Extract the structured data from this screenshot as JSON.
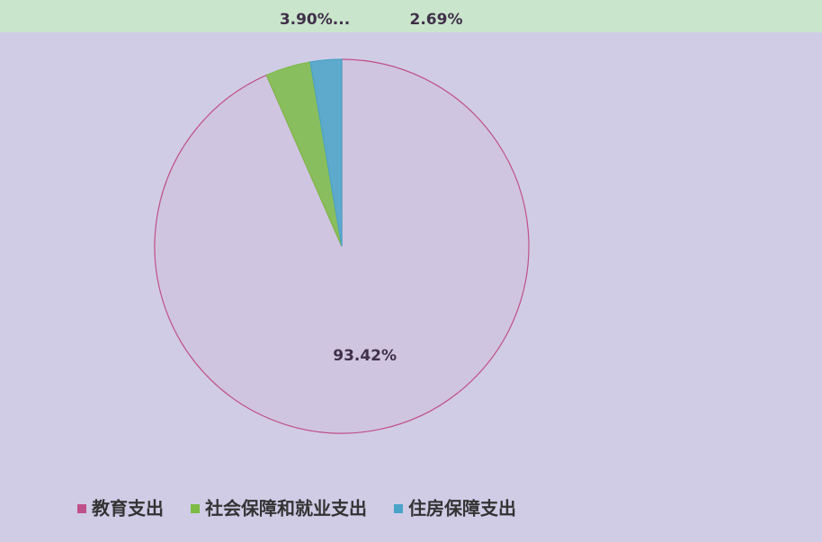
{
  "chart_data": {
    "type": "pie",
    "categories": [
      "教育支出",
      "社会保障和就业支出",
      "住房保障支出"
    ],
    "values": [
      93.42,
      3.9,
      2.69
    ],
    "value_labels": [
      "93.42%",
      "3.90%...",
      "2.69%"
    ],
    "colors": [
      "#c0508a",
      "#7dbb45",
      "#4aa3c8"
    ],
    "legend": "bottom"
  }
}
